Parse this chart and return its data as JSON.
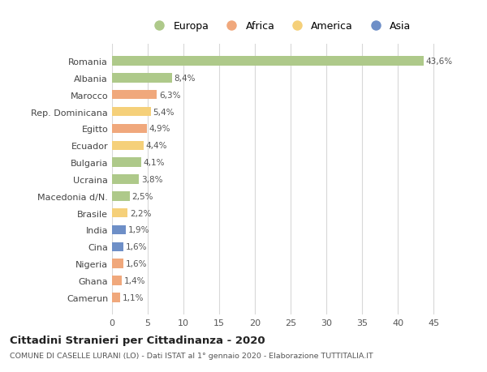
{
  "countries": [
    "Romania",
    "Albania",
    "Marocco",
    "Rep. Dominicana",
    "Egitto",
    "Ecuador",
    "Bulgaria",
    "Ucraina",
    "Macedonia d/N.",
    "Brasile",
    "India",
    "Cina",
    "Nigeria",
    "Ghana",
    "Camerun"
  ],
  "values": [
    43.6,
    8.4,
    6.3,
    5.4,
    4.9,
    4.4,
    4.1,
    3.8,
    2.5,
    2.2,
    1.9,
    1.6,
    1.6,
    1.4,
    1.1
  ],
  "regions": [
    "Europa",
    "Europa",
    "Africa",
    "America",
    "Africa",
    "America",
    "Europa",
    "Europa",
    "Europa",
    "America",
    "Asia",
    "Asia",
    "Africa",
    "Africa",
    "Africa"
  ],
  "colors": {
    "Europa": "#aec98a",
    "Africa": "#f0a87c",
    "America": "#f5d07a",
    "Asia": "#6e8fc7"
  },
  "legend_order": [
    "Europa",
    "Africa",
    "America",
    "Asia"
  ],
  "title": "Cittadini Stranieri per Cittadinanza - 2020",
  "subtitle": "COMUNE DI CASELLE LURANI (LO) - Dati ISTAT al 1° gennaio 2020 - Elaborazione TUTTITALIA.IT",
  "xlim": [
    0,
    47
  ],
  "xticks": [
    0,
    5,
    10,
    15,
    20,
    25,
    30,
    35,
    40,
    45
  ],
  "bg_color": "#ffffff",
  "grid_color": "#d8d8d8",
  "bar_height": 0.55,
  "label_fontsize": 7.5,
  "ytick_fontsize": 8.0,
  "xtick_fontsize": 8.0
}
